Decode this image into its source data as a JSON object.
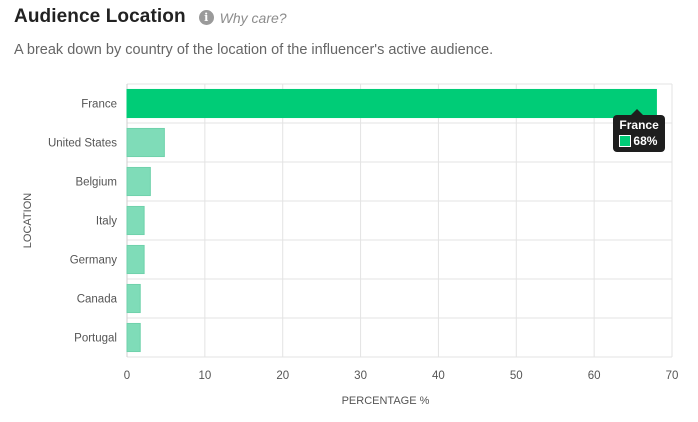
{
  "header": {
    "title": "Audience Location",
    "info_icon": "info-icon",
    "why_label": "Why care?"
  },
  "subtitle": "A break down by country of the location of the influencer's active audience.",
  "chart_data": {
    "type": "bar",
    "orientation": "horizontal",
    "categories": [
      "France",
      "United States",
      "Belgium",
      "Italy",
      "Germany",
      "Canada",
      "Portugal"
    ],
    "values": [
      68,
      4.8,
      3.0,
      2.2,
      2.2,
      1.7,
      1.7
    ],
    "xlabel": "PERCENTAGE %",
    "ylabel": "LOCATION",
    "xlim": [
      0,
      70
    ],
    "xticks": [
      0,
      10,
      20,
      30,
      40,
      50,
      60,
      70
    ],
    "grid": true,
    "bar_color": "#7fdcb8",
    "highlight_color": "#00cc77",
    "highlight_index": 0
  },
  "tooltip": {
    "name": "France",
    "value_label": "68%"
  }
}
